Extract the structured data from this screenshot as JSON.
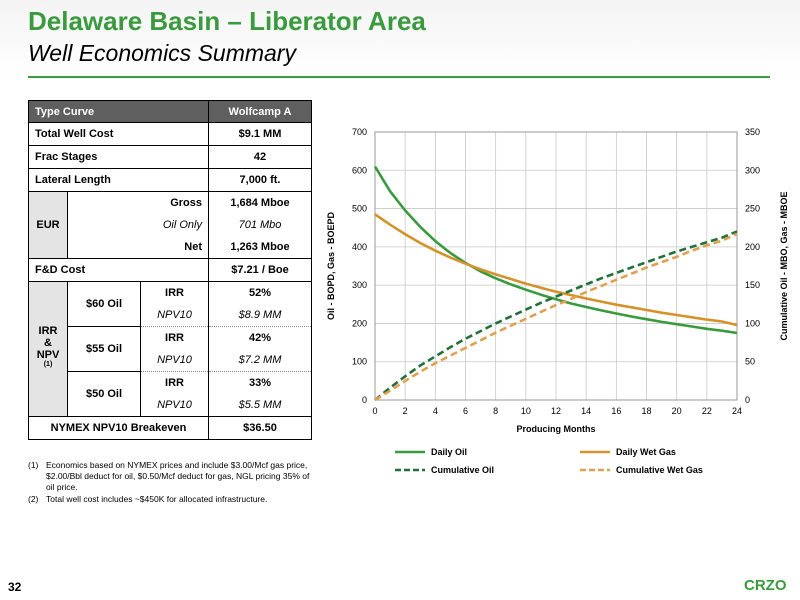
{
  "title": "Delaware Basin – Liberator Area",
  "subtitle": "Well Economics Summary",
  "table": {
    "header_left": "Type Curve",
    "header_right": "Wolfcamp A",
    "total_cost_label": "Total Well Cost",
    "total_cost_value": "$9.1 MM",
    "frac_label": "Frac Stages",
    "frac_value": "42",
    "lateral_label": "Lateral Length",
    "lateral_value": "7,000 ft.",
    "eur_label": "EUR",
    "eur_gross_label": "Gross",
    "eur_gross_value": "1,684 Mboe",
    "eur_oil_label": "Oil Only",
    "eur_oil_value": "701 Mbo",
    "eur_net_label": "Net",
    "eur_net_value": "1,263 Mboe",
    "fd_label": "F&D Cost",
    "fd_value": "$7.21 / Boe",
    "irr_group_line1": "IRR",
    "irr_group_amp": "&",
    "irr_group_line3": "NPV",
    "irr_group_sup": "(1)",
    "scenarios": [
      {
        "price": "$60 Oil",
        "irr_label": "IRR",
        "irr": "52%",
        "npv_label": "NPV10",
        "npv": "$8.9 MM"
      },
      {
        "price": "$55 Oil",
        "irr_label": "IRR",
        "irr": "42%",
        "npv_label": "NPV10",
        "npv": "$7.2 MM"
      },
      {
        "price": "$50 Oil",
        "irr_label": "IRR",
        "irr": "33%",
        "npv_label": "NPV10",
        "npv": "$5.5 MM"
      }
    ],
    "breakeven_label": "NYMEX NPV10 Breakeven",
    "breakeven_value": "$36.50"
  },
  "footnotes": [
    {
      "num": "(1)",
      "text": "Economics based on NYMEX prices and include $3.00/Mcf gas price, $2.00/Bbl deduct for oil, $0.50/Mcf deduct for gas, NGL pricing 35% of oil price."
    },
    {
      "num": "(2)",
      "text": "Total well cost includes ~$450K for allocated infrastructure."
    }
  ],
  "page_number": "32",
  "logo_text": "CRZO",
  "colors": {
    "brand_green": "#3a9a3e",
    "oil": "#3a9a3e",
    "gas": "#d4922a",
    "header_grey": "#5f5f5f"
  },
  "chart_data": {
    "type": "line",
    "xlabel": "Producing Months",
    "ylabel_left": "Oil - BOPD, Gas - BOEPD",
    "ylabel_right": "Cumulative Oil - MBO, Gas - MBOE",
    "xlim": [
      0,
      24
    ],
    "ylim_left": [
      0,
      700
    ],
    "ylim_right": [
      0,
      350
    ],
    "x_ticks": [
      "0",
      "2",
      "4",
      "6",
      "8",
      "10",
      "12",
      "14",
      "16",
      "18",
      "20",
      "22",
      "24"
    ],
    "y_left_ticks": [
      "0",
      "100",
      "200",
      "300",
      "400",
      "500",
      "600",
      "700"
    ],
    "y_right_ticks": [
      "0",
      "50",
      "100",
      "150",
      "200",
      "250",
      "300",
      "350"
    ],
    "grid": true,
    "legend_position": "bottom",
    "x": [
      0,
      1,
      2,
      3,
      4,
      5,
      6,
      7,
      8,
      9,
      10,
      11,
      12,
      13,
      14,
      15,
      16,
      17,
      18,
      19,
      20,
      21,
      22,
      23,
      24
    ],
    "series": [
      {
        "name": "Daily Oil",
        "axis": "left",
        "style": "solid",
        "color": "#3a9a3e",
        "values": [
          610,
          545,
          495,
          452,
          415,
          384,
          358,
          336,
          318,
          302,
          288,
          275,
          263,
          252,
          243,
          234,
          226,
          218,
          211,
          204,
          198,
          192,
          186,
          181,
          175
        ]
      },
      {
        "name": "Daily Wet Gas",
        "axis": "left",
        "style": "solid",
        "color": "#d4922a",
        "values": [
          485,
          458,
          433,
          410,
          390,
          372,
          356,
          341,
          328,
          316,
          304,
          293,
          283,
          274,
          265,
          257,
          249,
          242,
          235,
          228,
          222,
          216,
          210,
          205,
          196
        ]
      },
      {
        "name": "Cumulative Oil",
        "axis": "right",
        "style": "dashed",
        "color": "#22703a",
        "values": [
          0,
          16,
          31,
          45,
          57,
          69,
          80,
          90,
          100,
          109,
          118,
          127,
          135,
          143,
          151,
          159,
          166,
          173,
          180,
          187,
          194,
          200,
          206,
          212,
          220
        ]
      },
      {
        "name": "Cumulative Wet Gas",
        "axis": "right",
        "style": "dashed",
        "color": "#e0a050",
        "values": [
          0,
          12,
          25,
          37,
          48,
          58,
          68,
          78,
          88,
          97,
          106,
          115,
          124,
          132,
          141,
          149,
          157,
          165,
          173,
          180,
          187,
          195,
          202,
          208,
          217
        ]
      }
    ]
  }
}
